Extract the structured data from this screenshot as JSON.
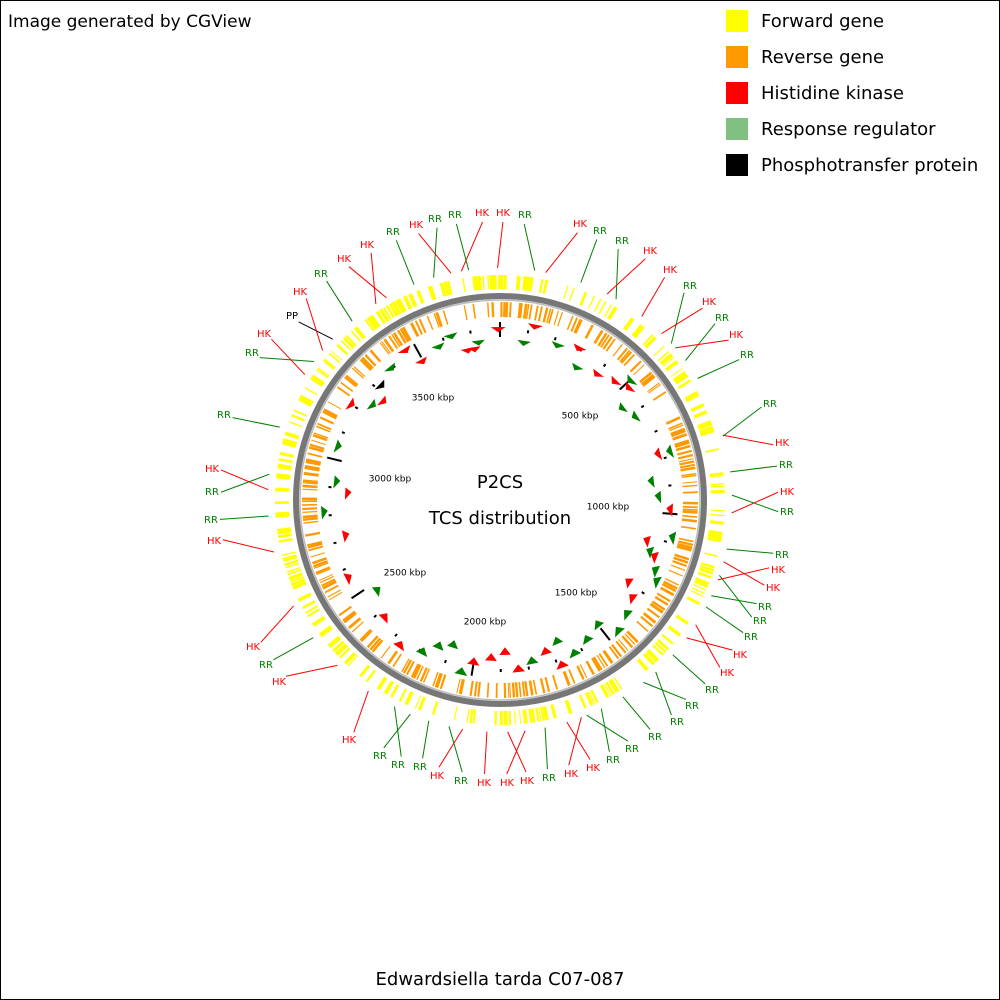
{
  "header": {
    "credit": "Image generated by CGView"
  },
  "legend": [
    {
      "label": "Forward gene",
      "color": "#ffff00"
    },
    {
      "label": "Reverse gene",
      "color": "#ff9900"
    },
    {
      "label": "Histidine kinase",
      "color": "#ff0000"
    },
    {
      "label": "Response regulator",
      "color": "#80c080"
    },
    {
      "label": "Phosphotransfer protein",
      "color": "#000000"
    }
  ],
  "map": {
    "title": "P2CS",
    "subtitle": "TCS distribution",
    "ticks": [
      "500 kbp",
      "1000 kbp",
      "1500 kbp",
      "2000 kbp",
      "2500 kbp",
      "3000 kbp",
      "3500 kbp"
    ],
    "features": [
      {
        "label": "HK",
        "color": "#ff0000"
      },
      {
        "label": "HK",
        "color": "#ff0000"
      },
      {
        "label": "RR",
        "color": "#008000"
      },
      {
        "label": "HK",
        "color": "#ff0000"
      },
      {
        "label": "RR",
        "color": "#008000"
      },
      {
        "label": "RR",
        "color": "#008000"
      },
      {
        "label": "HK",
        "color": "#ff0000"
      },
      {
        "label": "HK",
        "color": "#ff0000"
      },
      {
        "label": "RR",
        "color": "#008000"
      },
      {
        "label": "HK",
        "color": "#ff0000"
      },
      {
        "label": "RR",
        "color": "#008000"
      },
      {
        "label": "HK",
        "color": "#ff0000"
      },
      {
        "label": "RR",
        "color": "#008000"
      },
      {
        "label": "RR",
        "color": "#008000"
      },
      {
        "label": "HK",
        "color": "#ff0000"
      },
      {
        "label": "RR",
        "color": "#008000"
      },
      {
        "label": "HK",
        "color": "#ff0000"
      },
      {
        "label": "RR",
        "color": "#008000"
      },
      {
        "label": "RR",
        "color": "#008000"
      },
      {
        "label": "HK",
        "color": "#ff0000"
      },
      {
        "label": "HK",
        "color": "#ff0000"
      },
      {
        "label": "RR",
        "color": "#008000"
      },
      {
        "label": "RR",
        "color": "#008000"
      },
      {
        "label": "RR",
        "color": "#008000"
      },
      {
        "label": "HK",
        "color": "#ff0000"
      },
      {
        "label": "HK",
        "color": "#ff0000"
      },
      {
        "label": "RR",
        "color": "#008000"
      },
      {
        "label": "RR",
        "color": "#008000"
      },
      {
        "label": "RR",
        "color": "#008000"
      },
      {
        "label": "RR",
        "color": "#008000"
      },
      {
        "label": "RR",
        "color": "#008000"
      },
      {
        "label": "RR",
        "color": "#008000"
      },
      {
        "label": "HK",
        "color": "#ff0000"
      },
      {
        "label": "HK",
        "color": "#ff0000"
      },
      {
        "label": "RR",
        "color": "#008000"
      },
      {
        "label": "HK",
        "color": "#ff0000"
      },
      {
        "label": "HK",
        "color": "#ff0000"
      },
      {
        "label": "HK",
        "color": "#ff0000"
      },
      {
        "label": "RR",
        "color": "#008000"
      },
      {
        "label": "HK",
        "color": "#ff0000"
      },
      {
        "label": "RR",
        "color": "#008000"
      },
      {
        "label": "RR",
        "color": "#008000"
      },
      {
        "label": "RR",
        "color": "#008000"
      },
      {
        "label": "HK",
        "color": "#ff0000"
      },
      {
        "label": "HK",
        "color": "#ff0000"
      },
      {
        "label": "RR",
        "color": "#008000"
      },
      {
        "label": "HK",
        "color": "#ff0000"
      },
      {
        "label": "HK",
        "color": "#ff0000"
      },
      {
        "label": "RR",
        "color": "#008000"
      },
      {
        "label": "RR",
        "color": "#008000"
      },
      {
        "label": "HK",
        "color": "#ff0000"
      },
      {
        "label": "RR",
        "color": "#008000"
      },
      {
        "label": "RR",
        "color": "#008000"
      },
      {
        "label": "HK",
        "color": "#ff0000"
      },
      {
        "label": "PP",
        "color": "#000000"
      },
      {
        "label": "HK",
        "color": "#ff0000"
      },
      {
        "label": "RR",
        "color": "#008000"
      },
      {
        "label": "HK",
        "color": "#ff0000"
      },
      {
        "label": "HK",
        "color": "#ff0000"
      },
      {
        "label": "RR",
        "color": "#008000"
      },
      {
        "label": "HK",
        "color": "#ff0000"
      },
      {
        "label": "RR",
        "color": "#008000"
      },
      {
        "label": "RR",
        "color": "#008000"
      }
    ]
  },
  "footer": {
    "caption": "Edwardsiella tarda C07-087"
  }
}
